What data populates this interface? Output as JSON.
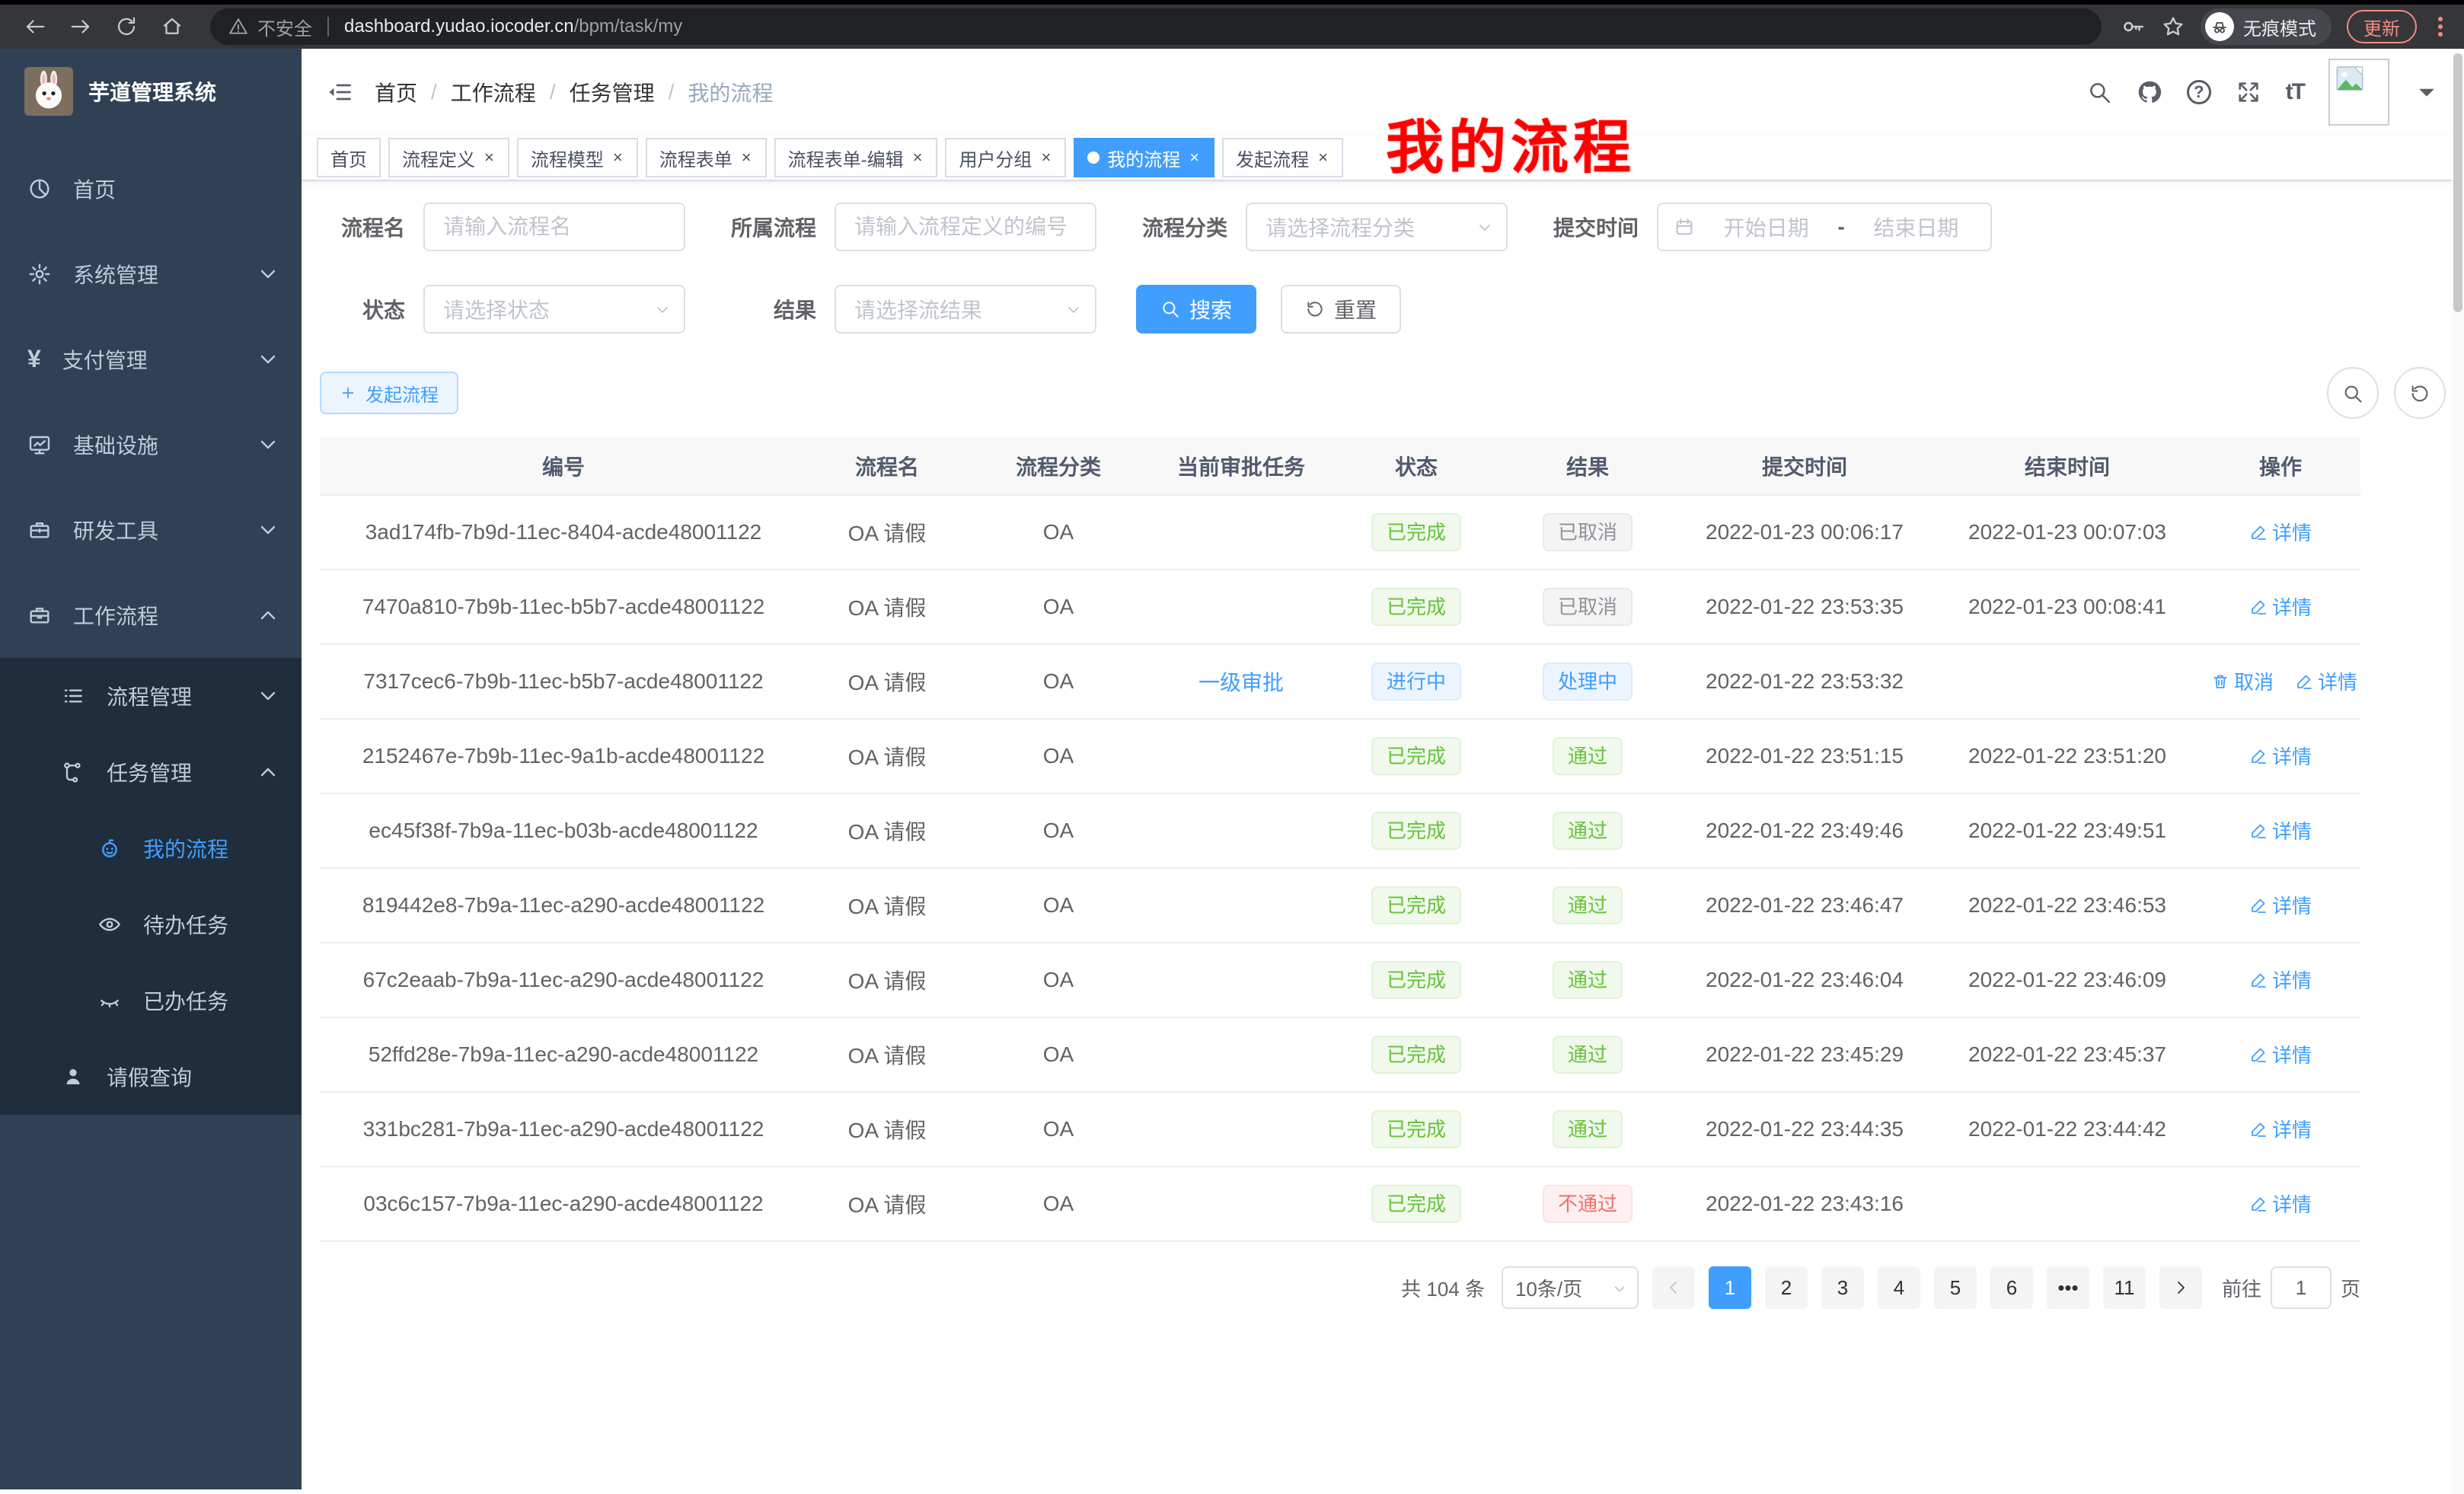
{
  "colors": {
    "accent": "#409eff",
    "success": "#67c23a",
    "info": "#909399",
    "danger": "#f56c6c",
    "sidebar": "#304156",
    "sidebar_dark": "#1f2d3d"
  },
  "browser": {
    "security_label": "不安全",
    "url_domain": "dashboard.yudao.iocoder.cn",
    "url_path": "/bpm/task/my",
    "incognito_label": "无痕模式",
    "update_label": "更新"
  },
  "sidebar": {
    "app_title": "芋道管理系统",
    "items": [
      {
        "icon": "dashboard-icon",
        "label": "首页",
        "level": 1,
        "arrow": "",
        "dark": false,
        "active": false
      },
      {
        "icon": "gear-icon",
        "label": "系统管理",
        "level": 1,
        "arrow": "down",
        "dark": false,
        "active": false
      },
      {
        "icon": "yen-icon",
        "label": "支付管理",
        "level": 1,
        "arrow": "down",
        "dark": false,
        "active": false
      },
      {
        "icon": "monitor-icon",
        "label": "基础设施",
        "level": 1,
        "arrow": "down",
        "dark": false,
        "active": false
      },
      {
        "icon": "toolbox-icon",
        "label": "研发工具",
        "level": 1,
        "arrow": "down",
        "dark": false,
        "active": false
      },
      {
        "icon": "briefcase-icon",
        "label": "工作流程",
        "level": 1,
        "arrow": "up",
        "dark": false,
        "active": false
      },
      {
        "icon": "list-icon",
        "label": "流程管理",
        "level": 2,
        "arrow": "down",
        "dark": true,
        "active": false
      },
      {
        "icon": "tree-icon",
        "label": "任务管理",
        "level": 2,
        "arrow": "up",
        "dark": true,
        "active": false
      },
      {
        "icon": "robot-icon",
        "label": "我的流程",
        "level": 3,
        "arrow": "",
        "dark": true,
        "active": true
      },
      {
        "icon": "eye-icon",
        "label": "待办任务",
        "level": 3,
        "arrow": "",
        "dark": true,
        "active": false
      },
      {
        "icon": "eye-closed-icon",
        "label": "已办任务",
        "level": 3,
        "arrow": "",
        "dark": true,
        "active": false
      },
      {
        "icon": "user-icon",
        "label": "请假查询",
        "level": 2,
        "arrow": "",
        "dark": true,
        "active": false
      }
    ]
  },
  "header": {
    "breadcrumb": [
      "首页",
      "工作流程",
      "任务管理",
      "我的流程"
    ],
    "annotation": "我的流程"
  },
  "tabs": [
    {
      "label": "首页",
      "active": false,
      "closable": false
    },
    {
      "label": "流程定义",
      "active": false,
      "closable": true
    },
    {
      "label": "流程模型",
      "active": false,
      "closable": true
    },
    {
      "label": "流程表单",
      "active": false,
      "closable": true
    },
    {
      "label": "流程表单-编辑",
      "active": false,
      "closable": true
    },
    {
      "label": "用户分组",
      "active": false,
      "closable": true
    },
    {
      "label": "我的流程",
      "active": true,
      "closable": true
    },
    {
      "label": "发起流程",
      "active": false,
      "closable": true
    }
  ],
  "filters": {
    "name_label": "流程名",
    "name_placeholder": "请输入流程名",
    "def_label": "所属流程",
    "def_placeholder": "请输入流程定义的编号",
    "category_label": "流程分类",
    "category_placeholder": "请选择流程分类",
    "time_label": "提交时间",
    "time_start_placeholder": "开始日期",
    "time_dash": "-",
    "time_end_placeholder": "结束日期",
    "status_label": "状态",
    "status_placeholder": "请选择状态",
    "result_label": "结果",
    "result_placeholder": "请选择流结果",
    "search_label": "搜索",
    "reset_label": "重置"
  },
  "toolbar": {
    "create_label": "发起流程"
  },
  "table": {
    "columns": [
      "编号",
      "流程名",
      "流程分类",
      "当前审批任务",
      "状态",
      "结果",
      "提交时间",
      "结束时间",
      "操作"
    ],
    "rows": [
      {
        "id": "3ad174fb-7b9d-11ec-8404-acde48001122",
        "name": "OA 请假",
        "category": "OA",
        "task": "",
        "status": {
          "label": "已完成",
          "type": "success"
        },
        "result": {
          "label": "已取消",
          "type": "info"
        },
        "submit": "2022-01-23 00:06:17",
        "end": "2022-01-23 00:07:03",
        "actions": [
          {
            "icon": "edit-icon",
            "label": "详情"
          }
        ]
      },
      {
        "id": "7470a810-7b9b-11ec-b5b7-acde48001122",
        "name": "OA 请假",
        "category": "OA",
        "task": "",
        "status": {
          "label": "已完成",
          "type": "success"
        },
        "result": {
          "label": "已取消",
          "type": "info"
        },
        "submit": "2022-01-22 23:53:35",
        "end": "2022-01-23 00:08:41",
        "actions": [
          {
            "icon": "edit-icon",
            "label": "详情"
          }
        ]
      },
      {
        "id": "7317cec6-7b9b-11ec-b5b7-acde48001122",
        "name": "OA 请假",
        "category": "OA",
        "task": "一级审批",
        "status": {
          "label": "进行中",
          "type": "primary"
        },
        "result": {
          "label": "处理中",
          "type": "primary"
        },
        "submit": "2022-01-22 23:53:32",
        "end": "",
        "actions": [
          {
            "icon": "trash-icon",
            "label": "取消"
          },
          {
            "icon": "edit-icon",
            "label": "详情"
          }
        ]
      },
      {
        "id": "2152467e-7b9b-11ec-9a1b-acde48001122",
        "name": "OA 请假",
        "category": "OA",
        "task": "",
        "status": {
          "label": "已完成",
          "type": "success"
        },
        "result": {
          "label": "通过",
          "type": "success"
        },
        "submit": "2022-01-22 23:51:15",
        "end": "2022-01-22 23:51:20",
        "actions": [
          {
            "icon": "edit-icon",
            "label": "详情"
          }
        ]
      },
      {
        "id": "ec45f38f-7b9a-11ec-b03b-acde48001122",
        "name": "OA 请假",
        "category": "OA",
        "task": "",
        "status": {
          "label": "已完成",
          "type": "success"
        },
        "result": {
          "label": "通过",
          "type": "success"
        },
        "submit": "2022-01-22 23:49:46",
        "end": "2022-01-22 23:49:51",
        "actions": [
          {
            "icon": "edit-icon",
            "label": "详情"
          }
        ]
      },
      {
        "id": "819442e8-7b9a-11ec-a290-acde48001122",
        "name": "OA 请假",
        "category": "OA",
        "task": "",
        "status": {
          "label": "已完成",
          "type": "success"
        },
        "result": {
          "label": "通过",
          "type": "success"
        },
        "submit": "2022-01-22 23:46:47",
        "end": "2022-01-22 23:46:53",
        "actions": [
          {
            "icon": "edit-icon",
            "label": "详情"
          }
        ]
      },
      {
        "id": "67c2eaab-7b9a-11ec-a290-acde48001122",
        "name": "OA 请假",
        "category": "OA",
        "task": "",
        "status": {
          "label": "已完成",
          "type": "success"
        },
        "result": {
          "label": "通过",
          "type": "success"
        },
        "submit": "2022-01-22 23:46:04",
        "end": "2022-01-22 23:46:09",
        "actions": [
          {
            "icon": "edit-icon",
            "label": "详情"
          }
        ]
      },
      {
        "id": "52ffd28e-7b9a-11ec-a290-acde48001122",
        "name": "OA 请假",
        "category": "OA",
        "task": "",
        "status": {
          "label": "已完成",
          "type": "success"
        },
        "result": {
          "label": "通过",
          "type": "success"
        },
        "submit": "2022-01-22 23:45:29",
        "end": "2022-01-22 23:45:37",
        "actions": [
          {
            "icon": "edit-icon",
            "label": "详情"
          }
        ]
      },
      {
        "id": "331bc281-7b9a-11ec-a290-acde48001122",
        "name": "OA 请假",
        "category": "OA",
        "task": "",
        "status": {
          "label": "已完成",
          "type": "success"
        },
        "result": {
          "label": "通过",
          "type": "success"
        },
        "submit": "2022-01-22 23:44:35",
        "end": "2022-01-22 23:44:42",
        "actions": [
          {
            "icon": "edit-icon",
            "label": "详情"
          }
        ]
      },
      {
        "id": "03c6c157-7b9a-11ec-a290-acde48001122",
        "name": "OA 请假",
        "category": "OA",
        "task": "",
        "status": {
          "label": "已完成",
          "type": "success"
        },
        "result": {
          "label": "不通过",
          "type": "danger"
        },
        "submit": "2022-01-22 23:43:16",
        "end": "",
        "actions": [
          {
            "icon": "edit-icon",
            "label": "详情"
          }
        ]
      }
    ]
  },
  "pagination": {
    "total_label": "共 104 条",
    "page_size_label": "10条/页",
    "pages": [
      {
        "label": "1",
        "active": true
      },
      {
        "label": "2",
        "active": false
      },
      {
        "label": "3",
        "active": false
      },
      {
        "label": "4",
        "active": false
      },
      {
        "label": "5",
        "active": false
      },
      {
        "label": "6",
        "active": false
      },
      {
        "label": "•••",
        "active": false
      },
      {
        "label": "11",
        "active": false
      }
    ],
    "goto_label": "前往",
    "goto_value": "1",
    "goto_unit": "页"
  }
}
